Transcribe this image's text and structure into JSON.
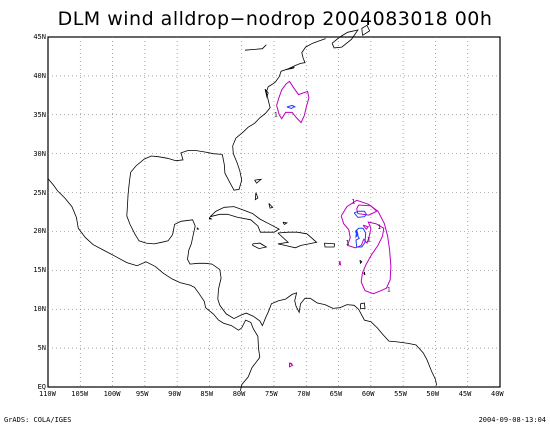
{
  "title": "DLM wind alldrop−nodrop 2004083018 00h",
  "footer": {
    "left": "GrADS: COLA/IGES",
    "right": "2004-09-08-13:04"
  },
  "map": {
    "lon_range": [
      -110,
      -40
    ],
    "lat_range": [
      0,
      45
    ],
    "lon_ticks": [
      {
        "v": -110,
        "label": "110W"
      },
      {
        "v": -105,
        "label": "105W"
      },
      {
        "v": -100,
        "label": "100W"
      },
      {
        "v": -95,
        "label": "95W"
      },
      {
        "v": -90,
        "label": "90W"
      },
      {
        "v": -85,
        "label": "85W"
      },
      {
        "v": -80,
        "label": "80W"
      },
      {
        "v": -75,
        "label": "75W"
      },
      {
        "v": -70,
        "label": "70W"
      },
      {
        "v": -65,
        "label": "65W"
      },
      {
        "v": -60,
        "label": "60W"
      },
      {
        "v": -55,
        "label": "55W"
      },
      {
        "v": -50,
        "label": "50W"
      },
      {
        "v": -45,
        "label": "45W"
      },
      {
        "v": -40,
        "label": "40W"
      }
    ],
    "lat_ticks": [
      {
        "v": 0,
        "label": "EQ"
      },
      {
        "v": 5,
        "label": "5N"
      },
      {
        "v": 10,
        "label": "10N"
      },
      {
        "v": 15,
        "label": "15N"
      },
      {
        "v": 20,
        "label": "20N"
      },
      {
        "v": 25,
        "label": "25N"
      },
      {
        "v": 30,
        "label": "30N"
      },
      {
        "v": 35,
        "label": "35N"
      },
      {
        "v": 40,
        "label": "40N"
      },
      {
        "v": 45,
        "label": "45N"
      }
    ],
    "contour_labels": [
      {
        "text": "1",
        "lon": -74.7,
        "lat": 34.8
      },
      {
        "text": "1",
        "lon": -62.7,
        "lat": 23.6
      },
      {
        "text": "1",
        "lon": -63.6,
        "lat": 18.3
      },
      {
        "text": "1",
        "lon": -60.3,
        "lat": 18.7
      },
      {
        "text": "1",
        "lon": -58.7,
        "lat": 20.3
      },
      {
        "text": "1",
        "lon": -57.2,
        "lat": 12.3
      }
    ],
    "colors": {
      "coast": "#000000",
      "contour_magenta": "#c000c0",
      "contour_blue": "#1e3cff",
      "grid": "#888888"
    }
  }
}
